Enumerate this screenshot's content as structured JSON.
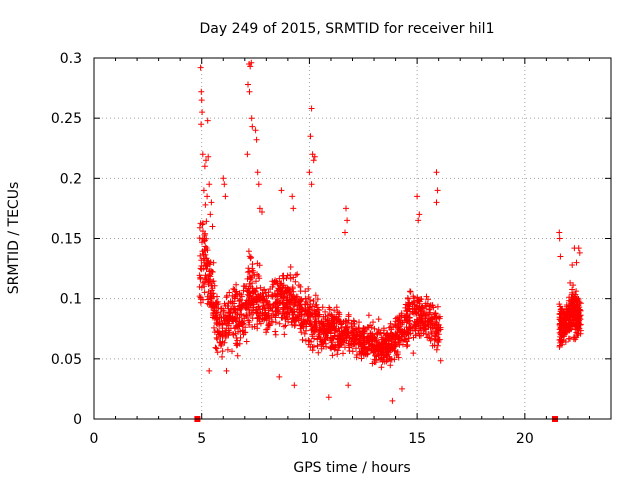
{
  "chart_data": {
    "type": "scatter",
    "title": "Day 249 of 2015, SRMTID for receiver hil1",
    "xlabel": "GPS time / hours",
    "ylabel": "SRMTID / TECUs",
    "xlim": [
      0,
      24
    ],
    "ylim": [
      0,
      0.3
    ],
    "x_ticks": [
      "0",
      "5",
      "10",
      "15",
      "20"
    ],
    "y_ticks": [
      "0",
      "0.05",
      "0.1",
      "0.15",
      "0.2",
      "0.25",
      "0.3"
    ],
    "grid": true,
    "marker": "+",
    "color": "#ff0000",
    "series": [
      {
        "name": "SRMTID",
        "segment_a_profile": {
          "x": [
            4.9,
            5.1,
            5.3,
            5.5,
            5.7,
            5.9,
            6.1,
            6.3,
            6.5,
            6.7,
            6.9,
            7.1,
            7.3,
            7.5,
            7.7,
            7.9,
            8.1,
            8.3,
            8.5,
            8.7,
            8.9,
            9.1,
            9.3,
            9.5,
            9.7,
            9.9,
            10.1,
            10.3,
            10.5,
            10.7,
            10.9,
            11.1,
            11.3,
            11.5,
            11.7,
            11.9,
            12.1,
            12.3,
            12.5,
            12.7,
            12.9,
            13.1,
            13.3,
            13.5,
            13.7,
            13.9,
            14.1,
            14.3,
            14.5,
            14.7,
            14.9,
            15.1,
            15.3,
            15.5,
            15.7,
            15.9,
            16.1
          ],
          "y_center": [
            0.13,
            0.14,
            0.12,
            0.1,
            0.08,
            0.075,
            0.08,
            0.085,
            0.09,
            0.08,
            0.085,
            0.1,
            0.11,
            0.1,
            0.1,
            0.095,
            0.09,
            0.095,
            0.1,
            0.1,
            0.095,
            0.1,
            0.095,
            0.09,
            0.085,
            0.09,
            0.08,
            0.08,
            0.075,
            0.075,
            0.075,
            0.075,
            0.075,
            0.07,
            0.07,
            0.07,
            0.07,
            0.065,
            0.065,
            0.065,
            0.065,
            0.06,
            0.06,
            0.06,
            0.06,
            0.065,
            0.07,
            0.075,
            0.08,
            0.085,
            0.085,
            0.085,
            0.08,
            0.085,
            0.08,
            0.075,
            0.07
          ],
          "y_spread": [
            0.08,
            0.08,
            0.06,
            0.05,
            0.04,
            0.04,
            0.04,
            0.045,
            0.05,
            0.04,
            0.045,
            0.06,
            0.07,
            0.05,
            0.045,
            0.045,
            0.04,
            0.045,
            0.045,
            0.045,
            0.04,
            0.045,
            0.04,
            0.04,
            0.04,
            0.045,
            0.04,
            0.04,
            0.035,
            0.035,
            0.035,
            0.035,
            0.035,
            0.03,
            0.03,
            0.03,
            0.03,
            0.03,
            0.03,
            0.03,
            0.03,
            0.03,
            0.03,
            0.03,
            0.03,
            0.035,
            0.04,
            0.04,
            0.045,
            0.05,
            0.05,
            0.045,
            0.04,
            0.045,
            0.04,
            0.035,
            0.035
          ],
          "count": 1700
        },
        "segment_b_profile": {
          "x": [
            21.6,
            21.8,
            22.0,
            22.2,
            22.4,
            22.6
          ],
          "y_center": [
            0.08,
            0.075,
            0.085,
            0.09,
            0.085,
            0.08
          ],
          "y_spread": [
            0.035,
            0.03,
            0.035,
            0.04,
            0.035,
            0.03
          ],
          "count": 300
        },
        "peaks": [
          {
            "x": 4.95,
            "y": 0.292
          },
          {
            "x": 4.98,
            "y": 0.272
          },
          {
            "x": 5.0,
            "y": 0.265
          },
          {
            "x": 5.02,
            "y": 0.255
          },
          {
            "x": 4.97,
            "y": 0.245
          },
          {
            "x": 5.28,
            "y": 0.248
          },
          {
            "x": 5.05,
            "y": 0.22
          },
          {
            "x": 5.15,
            "y": 0.21
          },
          {
            "x": 5.2,
            "y": 0.215
          },
          {
            "x": 5.3,
            "y": 0.218
          },
          {
            "x": 5.35,
            "y": 0.195
          },
          {
            "x": 5.1,
            "y": 0.19
          },
          {
            "x": 5.25,
            "y": 0.185
          },
          {
            "x": 5.45,
            "y": 0.18
          },
          {
            "x": 5.4,
            "y": 0.17
          },
          {
            "x": 5.5,
            "y": 0.16
          },
          {
            "x": 7.2,
            "y": 0.295
          },
          {
            "x": 7.25,
            "y": 0.293
          },
          {
            "x": 7.3,
            "y": 0.296
          },
          {
            "x": 7.15,
            "y": 0.278
          },
          {
            "x": 7.22,
            "y": 0.272
          },
          {
            "x": 7.32,
            "y": 0.25
          },
          {
            "x": 7.35,
            "y": 0.243
          },
          {
            "x": 7.5,
            "y": 0.24
          },
          {
            "x": 7.55,
            "y": 0.232
          },
          {
            "x": 7.12,
            "y": 0.22
          },
          {
            "x": 7.6,
            "y": 0.205
          },
          {
            "x": 7.65,
            "y": 0.195
          },
          {
            "x": 6.0,
            "y": 0.2
          },
          {
            "x": 6.05,
            "y": 0.195
          },
          {
            "x": 6.1,
            "y": 0.185
          },
          {
            "x": 7.7,
            "y": 0.175
          },
          {
            "x": 7.8,
            "y": 0.172
          },
          {
            "x": 8.7,
            "y": 0.19
          },
          {
            "x": 9.2,
            "y": 0.185
          },
          {
            "x": 9.25,
            "y": 0.175
          },
          {
            "x": 10.1,
            "y": 0.258
          },
          {
            "x": 10.05,
            "y": 0.235
          },
          {
            "x": 10.15,
            "y": 0.22
          },
          {
            "x": 10.2,
            "y": 0.215
          },
          {
            "x": 10.25,
            "y": 0.218
          },
          {
            "x": 10.0,
            "y": 0.205
          },
          {
            "x": 10.1,
            "y": 0.195
          },
          {
            "x": 11.7,
            "y": 0.175
          },
          {
            "x": 11.75,
            "y": 0.165
          },
          {
            "x": 11.65,
            "y": 0.155
          },
          {
            "x": 15.9,
            "y": 0.205
          },
          {
            "x": 15.95,
            "y": 0.19
          },
          {
            "x": 15.0,
            "y": 0.185
          },
          {
            "x": 15.1,
            "y": 0.17
          },
          {
            "x": 15.05,
            "y": 0.165
          },
          {
            "x": 15.9,
            "y": 0.18
          },
          {
            "x": 21.6,
            "y": 0.155
          },
          {
            "x": 21.62,
            "y": 0.15
          },
          {
            "x": 21.65,
            "y": 0.135
          },
          {
            "x": 22.3,
            "y": 0.142
          },
          {
            "x": 22.5,
            "y": 0.142
          },
          {
            "x": 22.55,
            "y": 0.138
          },
          {
            "x": 22.4,
            "y": 0.13
          },
          {
            "x": 22.2,
            "y": 0.128
          }
        ],
        "lows": [
          {
            "x": 10.9,
            "y": 0.018
          },
          {
            "x": 13.85,
            "y": 0.015
          },
          {
            "x": 9.3,
            "y": 0.028
          },
          {
            "x": 5.35,
            "y": 0.04
          },
          {
            "x": 6.15,
            "y": 0.04
          },
          {
            "x": 8.6,
            "y": 0.035
          },
          {
            "x": 11.8,
            "y": 0.028
          },
          {
            "x": 14.3,
            "y": 0.025
          }
        ],
        "baseline_markers": [
          {
            "x": 4.8,
            "y": 0
          },
          {
            "x": 21.4,
            "y": 0
          }
        ]
      }
    ]
  }
}
